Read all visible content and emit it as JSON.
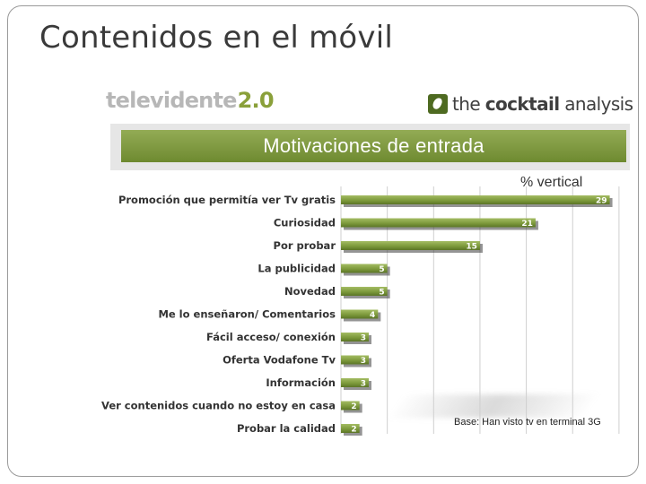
{
  "slide": {
    "title": "Contenidos en el móvil"
  },
  "logos": {
    "left_brand": "televidente",
    "left_version": "2.0",
    "right_prefix": "the ",
    "right_bold": "cocktail",
    "right_suffix": " analysis"
  },
  "colors": {
    "bar": "#7d9a3c",
    "bar_top": "#a4bc63",
    "bar_bottom": "#5b7526",
    "banner": "#7f9a3e",
    "label_text": "#333333"
  },
  "chart_data": {
    "type": "bar",
    "orientation": "horizontal",
    "title": "Motivaciones de entrada",
    "subtitle": "% vertical",
    "categories": [
      "Promoción que permitía ver Tv gratis",
      "Curiosidad",
      "Por probar",
      "La publicidad",
      "Novedad",
      "Me lo enseñaron/ Comentarios",
      "Fácil acceso/ conexión",
      "Oferta Vodafone Tv",
      "Información",
      "Ver contenidos cuando no estoy en casa",
      "Probar la calidad"
    ],
    "values": [
      29,
      21,
      15,
      5,
      5,
      4,
      3,
      3,
      3,
      2,
      2
    ],
    "xlim": [
      0,
      30
    ],
    "grid": true,
    "data_labels": true,
    "note": "Base: Han visto tv en terminal 3G"
  }
}
